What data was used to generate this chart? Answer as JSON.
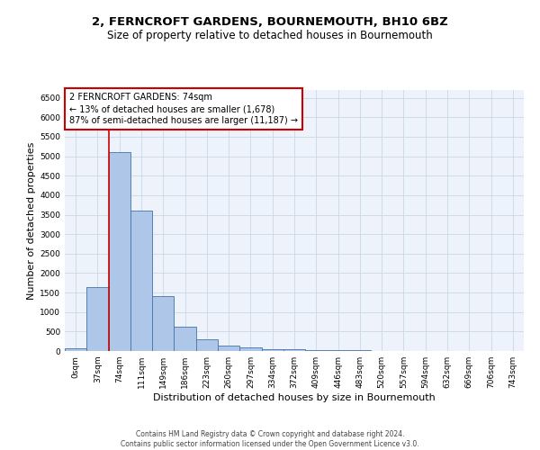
{
  "title": "2, FERNCROFT GARDENS, BOURNEMOUTH, BH10 6BZ",
  "subtitle": "Size of property relative to detached houses in Bournemouth",
  "xlabel": "Distribution of detached houses by size in Bournemouth",
  "ylabel": "Number of detached properties",
  "footer_line1": "Contains HM Land Registry data © Crown copyright and database right 2024.",
  "footer_line2": "Contains public sector information licensed under the Open Government Licence v3.0.",
  "bar_labels": [
    "0sqm",
    "37sqm",
    "74sqm",
    "111sqm",
    "149sqm",
    "186sqm",
    "223sqm",
    "260sqm",
    "297sqm",
    "334sqm",
    "372sqm",
    "409sqm",
    "446sqm",
    "483sqm",
    "520sqm",
    "557sqm",
    "594sqm",
    "632sqm",
    "669sqm",
    "706sqm",
    "743sqm"
  ],
  "bar_values": [
    70,
    1650,
    5100,
    3600,
    1400,
    620,
    310,
    130,
    100,
    55,
    40,
    30,
    20,
    15,
    10,
    8,
    5,
    4,
    3,
    2,
    2
  ],
  "bar_color": "#aec6e8",
  "bar_edge_color": "#4472a8",
  "grid_color": "#c8d8e8",
  "marker_line_color": "#cc0000",
  "annotation_text": "2 FERNCROFT GARDENS: 74sqm\n← 13% of detached houses are smaller (1,678)\n87% of semi-detached houses are larger (11,187) →",
  "annotation_box_color": "#cc0000",
  "ylim": [
    0,
    6700
  ],
  "yticks": [
    0,
    500,
    1000,
    1500,
    2000,
    2500,
    3000,
    3500,
    4000,
    4500,
    5000,
    5500,
    6000,
    6500
  ],
  "background_color": "#eef2fa",
  "title_fontsize": 9.5,
  "subtitle_fontsize": 8.5,
  "axis_label_fontsize": 8,
  "tick_fontsize": 6.5,
  "annotation_fontsize": 7,
  "footer_fontsize": 5.5
}
